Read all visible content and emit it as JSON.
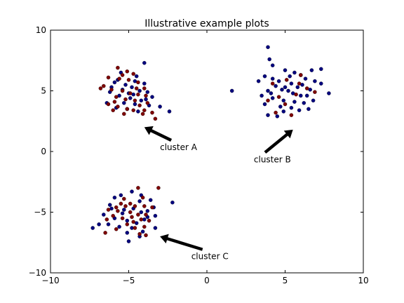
{
  "chart_data": {
    "type": "scatter",
    "title": "Illustrative example plots",
    "xlabel": "",
    "ylabel": "",
    "xlim": [
      -10,
      10
    ],
    "ylim": [
      -10,
      10
    ],
    "xticks": [
      -10,
      -5,
      0,
      5,
      10
    ],
    "yticks": [
      -10,
      -5,
      0,
      5,
      10
    ],
    "xtick_labels": [
      "−10",
      "−5",
      "0",
      "5",
      "10"
    ],
    "ytick_labels": [
      "−10",
      "−5",
      "0",
      "5",
      "10"
    ],
    "grid": false,
    "series": [
      {
        "color": "#00007f",
        "points": [
          [
            -4.0,
            7.3
          ],
          [
            -5.5,
            6.5
          ],
          [
            -4.5,
            6.2
          ],
          [
            -4.6,
            5.8
          ],
          [
            -5.9,
            5.7
          ],
          [
            -5.2,
            5.5
          ],
          [
            -4.8,
            5.3
          ],
          [
            -4.3,
            5.0
          ],
          [
            -3.8,
            4.9
          ],
          [
            -5.0,
            4.8
          ],
          [
            -5.6,
            4.6
          ],
          [
            -4.9,
            4.4
          ],
          [
            -4.2,
            4.2
          ],
          [
            -5.3,
            4.0
          ],
          [
            -4.6,
            3.9
          ],
          [
            -3.7,
            3.8
          ],
          [
            -3.0,
            3.7
          ],
          [
            -2.4,
            3.3
          ],
          [
            -5.8,
            3.6
          ],
          [
            -4.4,
            3.3
          ],
          [
            -5.1,
            3.5
          ],
          [
            -6.2,
            4.9
          ],
          [
            -6.1,
            5.3
          ],
          [
            -3.5,
            4.5
          ],
          [
            -4.0,
            5.6
          ],
          [
            -5.4,
            5.1
          ],
          [
            -4.7,
            4.7
          ],
          [
            -3.9,
            4.3
          ],
          [
            -6.4,
            4.0
          ],
          [
            -5.7,
            5.9
          ],
          [
            1.6,
            5.0
          ],
          [
            3.9,
            8.6
          ],
          [
            4.0,
            7.6
          ],
          [
            4.2,
            7.1
          ],
          [
            5.0,
            6.7
          ],
          [
            6.0,
            6.3
          ],
          [
            6.3,
            6.0
          ],
          [
            7.3,
            6.8
          ],
          [
            3.7,
            6.2
          ],
          [
            4.6,
            5.8
          ],
          [
            5.4,
            5.6
          ],
          [
            5.8,
            5.3
          ],
          [
            6.6,
            5.1
          ],
          [
            4.4,
            5.4
          ],
          [
            3.9,
            5.0
          ],
          [
            3.5,
            4.6
          ],
          [
            4.2,
            4.4
          ],
          [
            4.9,
            4.2
          ],
          [
            5.6,
            4.1
          ],
          [
            6.2,
            4.0
          ],
          [
            4.7,
            3.7
          ],
          [
            5.4,
            3.6
          ],
          [
            6.8,
            4.2
          ],
          [
            3.7,
            3.9
          ],
          [
            4.9,
            3.3
          ],
          [
            5.9,
            3.4
          ],
          [
            6.5,
            3.5
          ],
          [
            3.9,
            3.0
          ],
          [
            4.5,
            2.9
          ],
          [
            7.3,
            5.6
          ],
          [
            6.9,
            5.8
          ],
          [
            6.1,
            5.5
          ],
          [
            5.2,
            5.0
          ],
          [
            5.5,
            4.8
          ],
          [
            4.2,
            6.0
          ],
          [
            7.8,
            4.8
          ],
          [
            5.6,
            6.5
          ],
          [
            6.7,
            6.7
          ],
          [
            3.3,
            5.8
          ],
          [
            6.0,
            4.6
          ],
          [
            5.3,
            6.2
          ],
          [
            4.8,
            5.1
          ],
          [
            6.4,
            4.6
          ],
          [
            5.0,
            5.3
          ],
          [
            4.1,
            4.8
          ],
          [
            -4.8,
            -3.3
          ],
          [
            -5.5,
            -3.6
          ],
          [
            -4.2,
            -3.6
          ],
          [
            -5.9,
            -3.8
          ],
          [
            -4.3,
            -4.1
          ],
          [
            -3.6,
            -4.0
          ],
          [
            -2.2,
            -4.2
          ],
          [
            -6.2,
            -4.4
          ],
          [
            -5.3,
            -4.8
          ],
          [
            -4.7,
            -4.7
          ],
          [
            -4.2,
            -5.0
          ],
          [
            -3.8,
            -4.9
          ],
          [
            -3.3,
            -5.3
          ],
          [
            -6.6,
            -5.2
          ],
          [
            -5.9,
            -5.5
          ],
          [
            -5.1,
            -5.7
          ],
          [
            -4.5,
            -5.9
          ],
          [
            -4.0,
            -5.6
          ],
          [
            -6.3,
            -6.0
          ],
          [
            -6.9,
            -6.0
          ],
          [
            -5.6,
            -6.2
          ],
          [
            -4.8,
            -6.3
          ],
          [
            -7.3,
            -6.3
          ],
          [
            -5.1,
            -6.7
          ],
          [
            -4.3,
            -7.0
          ],
          [
            -5.0,
            -7.4
          ],
          [
            -3.3,
            -6.3
          ],
          [
            -3.8,
            -5.4
          ],
          [
            -5.4,
            -5.1
          ],
          [
            -4.1,
            -6.6
          ],
          [
            -6.1,
            -4.7
          ],
          [
            -3.4,
            -4.6
          ]
        ]
      },
      {
        "color": "#7f0000",
        "points": [
          [
            -5.7,
            6.9
          ],
          [
            -5.1,
            6.6
          ],
          [
            -4.7,
            6.4
          ],
          [
            -6.3,
            6.1
          ],
          [
            -5.6,
            6.0
          ],
          [
            -5.0,
            5.9
          ],
          [
            -4.4,
            5.7
          ],
          [
            -6.6,
            5.4
          ],
          [
            -6.1,
            5.1
          ],
          [
            -5.4,
            5.0
          ],
          [
            -4.9,
            4.8
          ],
          [
            -4.4,
            4.7
          ],
          [
            -3.9,
            4.6
          ],
          [
            -5.8,
            4.5
          ],
          [
            -5.2,
            4.3
          ],
          [
            -4.6,
            4.2
          ],
          [
            -6.3,
            3.9
          ],
          [
            -5.7,
            3.7
          ],
          [
            -5.1,
            3.5
          ],
          [
            -4.7,
            3.4
          ],
          [
            -4.0,
            3.4
          ],
          [
            -3.5,
            3.2
          ],
          [
            -6.0,
            3.4
          ],
          [
            -5.3,
            3.1
          ],
          [
            -4.3,
            3.8
          ],
          [
            -4.1,
            3.1
          ],
          [
            -3.3,
            2.7
          ],
          [
            -6.8,
            5.2
          ],
          [
            -5.9,
            4.1
          ],
          [
            -4.5,
            5.2
          ],
          [
            -4.0,
            5.2
          ],
          [
            -5.4,
            6.3
          ],
          [
            -3.8,
            4.0
          ],
          [
            4.2,
            5.6
          ],
          [
            5.1,
            5.9
          ],
          [
            5.7,
            4.7
          ],
          [
            6.4,
            5.2
          ],
          [
            4.6,
            4.5
          ],
          [
            5.0,
            3.9
          ],
          [
            4.4,
            3.2
          ],
          [
            5.4,
            3.0
          ],
          [
            6.0,
            6.3
          ],
          [
            6.9,
            4.9
          ],
          [
            3.9,
            4.2
          ],
          [
            5.9,
            5.6
          ],
          [
            -4.4,
            -3.0
          ],
          [
            -3.1,
            -3.0
          ],
          [
            -5.3,
            -3.9
          ],
          [
            -4.9,
            -4.3
          ],
          [
            -5.8,
            -4.6
          ],
          [
            -5.2,
            -4.5
          ],
          [
            -4.6,
            -4.5
          ],
          [
            -4.0,
            -4.5
          ],
          [
            -3.5,
            -4.6
          ],
          [
            -6.3,
            -4.8
          ],
          [
            -5.7,
            -4.9
          ],
          [
            -4.9,
            -5.0
          ],
          [
            -4.4,
            -5.2
          ],
          [
            -3.9,
            -5.2
          ],
          [
            -6.0,
            -5.3
          ],
          [
            -5.4,
            -5.5
          ],
          [
            -4.8,
            -5.4
          ],
          [
            -4.2,
            -5.6
          ],
          [
            -3.7,
            -5.7
          ],
          [
            -6.4,
            -5.6
          ],
          [
            -5.1,
            -6.0
          ],
          [
            -4.6,
            -6.3
          ],
          [
            -4.0,
            -6.2
          ],
          [
            -5.8,
            -6.4
          ],
          [
            -4.3,
            -6.8
          ],
          [
            -6.5,
            -6.7
          ],
          [
            -3.9,
            -6.9
          ],
          [
            -5.5,
            -4.3
          ],
          [
            -4.1,
            -3.8
          ],
          [
            -4.7,
            -5.8
          ]
        ]
      }
    ],
    "annotations": [
      {
        "text": "cluster A",
        "xy": [
          -4.0,
          2.0
        ],
        "xytext": [
          -3.0,
          0.0
        ]
      },
      {
        "text": "cluster B",
        "xy": [
          5.5,
          1.8
        ],
        "xytext": [
          3.0,
          -1.0
        ]
      },
      {
        "text": "cluster C",
        "xy": [
          -3.0,
          -7.0
        ],
        "xytext": [
          -1.0,
          -9.0
        ]
      }
    ]
  }
}
